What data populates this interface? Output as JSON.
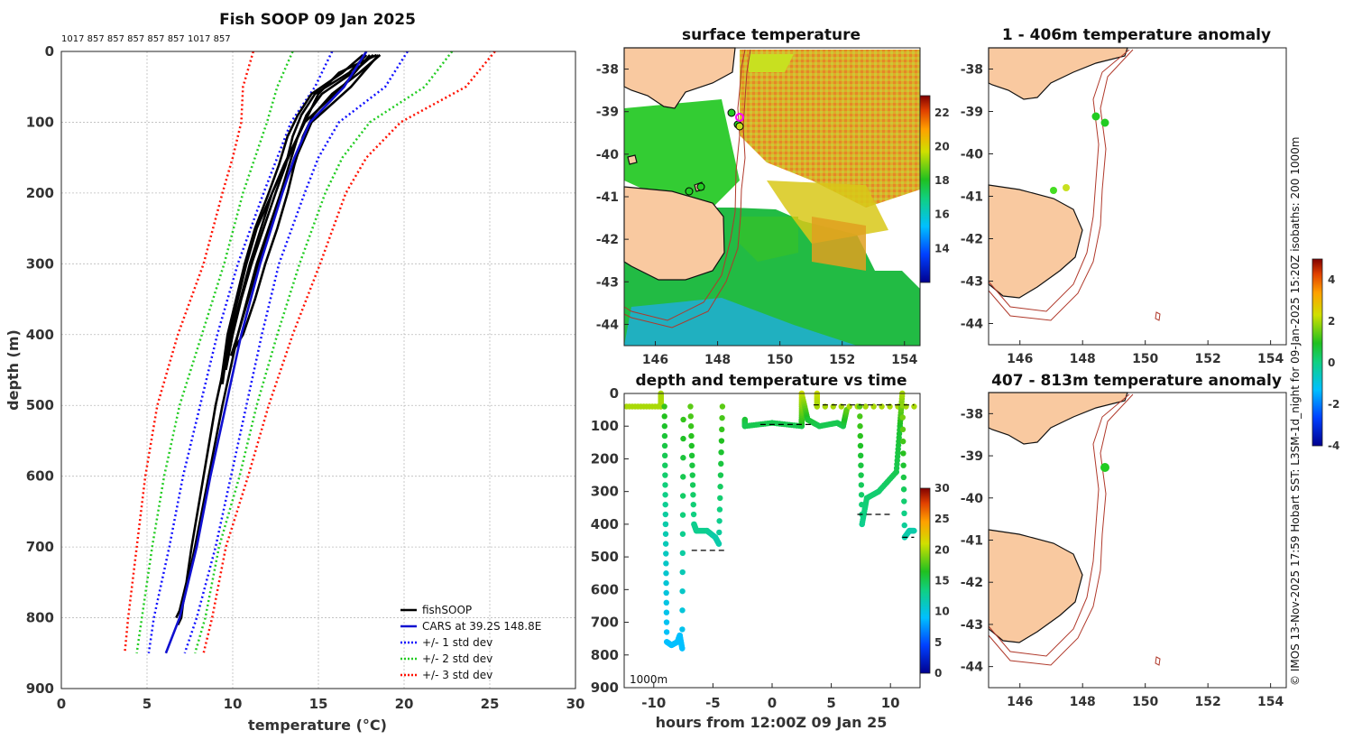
{
  "colors": {
    "fishsoop": "#000000",
    "cars": "#1010d0",
    "sd1": "#1010ff",
    "sd2": "#22cc22",
    "sd3": "#ff1100",
    "land": "#f9c9a0",
    "isobath": "#b0392b"
  },
  "depth_label_counts": "1017 857 857 857 857 857 1017 857",
  "credit": "© IMOS 13-Nov-2025 17:59 Hobart SST: L3SM-1d_night for 09-Jan-2025 15:20Z isobaths: 200  1000m",
  "chart_data": [
    {
      "id": "profile",
      "type": "line",
      "title": "Fish SOOP 09 Jan 2025",
      "xlabel": "temperature (°C)",
      "ylabel": "depth (m)",
      "xlim": [
        0,
        30
      ],
      "ylim": [
        900,
        0
      ],
      "xticks": [
        "0",
        "5",
        "10",
        "15",
        "20",
        "25",
        "30"
      ],
      "yticks": [
        "0",
        "100",
        "200",
        "300",
        "400",
        "500",
        "600",
        "700",
        "800",
        "900"
      ],
      "legend": [
        "fishSOOP",
        "CARS at 39.2S 148.8E",
        "+/- 1 std dev",
        "+/- 2 std dev",
        "+/- 3 std dev"
      ],
      "cars": {
        "depth": [
          0,
          50,
          100,
          150,
          200,
          300,
          400,
          500,
          600,
          700,
          800,
          850
        ],
        "temp": [
          17.8,
          16.5,
          14.5,
          13.6,
          12.9,
          11.6,
          10.5,
          9.6,
          8.7,
          7.9,
          6.9,
          6.1
        ]
      },
      "std_devs": [
        {
          "name": "+/- 1 std dev",
          "lower": {
            "depth": [
              0,
              50,
              100,
              150,
              200,
              300,
              400,
              500,
              600,
              700,
              800,
              850
            ],
            "temp": [
              15.8,
              14.8,
              13.4,
              12.6,
              11.8,
              10.3,
              9.1,
              8.1,
              7.1,
              6.3,
              5.4,
              5.1
            ]
          },
          "upper": {
            "depth": [
              0,
              50,
              100,
              150,
              200,
              300,
              400,
              500,
              600,
              700,
              800,
              850
            ],
            "temp": [
              20.2,
              18.9,
              16.2,
              15.0,
              14.2,
              12.7,
              11.7,
              10.8,
              9.9,
              9.0,
              7.9,
              7.2
            ]
          }
        },
        {
          "name": "+/- 2 std dev",
          "lower": {
            "depth": [
              0,
              50,
              100,
              150,
              200,
              300,
              400,
              500,
              600,
              700,
              800,
              850
            ],
            "temp": [
              13.5,
              12.6,
              12.0,
              11.3,
              10.6,
              9.5,
              8.2,
              6.9,
              6.0,
              5.3,
              4.7,
              4.4
            ]
          },
          "upper": {
            "depth": [
              0,
              50,
              100,
              150,
              200,
              300,
              400,
              500,
              600,
              700,
              800,
              850
            ],
            "temp": [
              22.8,
              21.2,
              18.0,
              16.4,
              15.4,
              13.9,
              12.6,
              11.4,
              10.4,
              9.2,
              8.4,
              7.8
            ]
          }
        },
        {
          "name": "+/- 3 std dev",
          "lower": {
            "depth": [
              0,
              50,
              100,
              150,
              200,
              300,
              400,
              500,
              600,
              700,
              800,
              850
            ],
            "temp": [
              11.2,
              10.6,
              10.5,
              10.0,
              9.4,
              8.3,
              6.8,
              5.6,
              4.9,
              4.4,
              3.9,
              3.7
            ]
          },
          "upper": {
            "depth": [
              0,
              50,
              100,
              150,
              200,
              300,
              400,
              500,
              600,
              700,
              800,
              850
            ],
            "temp": [
              25.3,
              23.6,
              19.8,
              17.8,
              16.6,
              15.1,
              13.5,
              12.1,
              10.9,
              9.6,
              8.8,
              8.3
            ]
          }
        }
      ],
      "fishsoop": [
        {
          "depth": [
            5,
            30,
            60,
            90,
            120,
            160,
            200,
            250,
            300,
            350,
            400,
            420
          ],
          "temp": [
            18.6,
            17.4,
            15.8,
            14.7,
            14.1,
            13.6,
            13.2,
            12.6,
            11.9,
            11.3,
            10.6,
            10.1
          ]
        },
        {
          "depth": [
            5,
            30,
            60,
            90,
            120,
            160,
            200,
            250,
            300,
            350,
            400,
            430
          ],
          "temp": [
            18.2,
            17.0,
            15.2,
            14.3,
            13.8,
            13.3,
            12.8,
            12.2,
            11.5,
            10.9,
            10.3,
            9.9
          ]
        },
        {
          "depth": [
            5,
            30,
            60,
            90,
            120,
            160,
            200,
            250,
            300,
            350,
            400,
            450
          ],
          "temp": [
            17.8,
            16.8,
            14.8,
            14.0,
            13.5,
            13.1,
            12.5,
            11.8,
            11.1,
            10.5,
            10.0,
            9.6
          ]
        },
        {
          "depth": [
            5,
            30,
            60,
            90,
            120,
            160,
            200,
            250,
            300,
            350,
            400,
            470
          ],
          "temp": [
            18.4,
            16.2,
            15.0,
            14.4,
            13.8,
            13.0,
            12.3,
            11.4,
            10.8,
            10.3,
            9.8,
            9.4
          ]
        },
        {
          "depth": [
            5,
            30,
            60,
            90,
            120,
            160,
            200,
            250,
            300,
            350,
            400,
            470
          ],
          "temp": [
            17.6,
            16.4,
            14.6,
            13.8,
            13.2,
            12.7,
            12.1,
            11.3,
            10.7,
            10.2,
            9.7,
            9.3
          ]
        },
        {
          "depth": [
            5,
            50,
            100,
            200,
            300,
            400,
            500,
            600,
            700,
            780,
            800,
            810
          ],
          "temp": [
            18.5,
            16.9,
            14.6,
            12.8,
            11.4,
            10.3,
            9.4,
            8.6,
            7.8,
            7.1,
            7.0,
            6.8
          ]
        },
        {
          "depth": [
            5,
            50,
            100,
            200,
            300,
            400,
            500,
            600,
            700,
            750,
            790,
            800
          ],
          "temp": [
            18.0,
            16.4,
            14.2,
            12.3,
            11.0,
            9.9,
            9.0,
            8.3,
            7.6,
            7.3,
            6.9,
            6.7
          ]
        }
      ]
    },
    {
      "id": "time",
      "type": "scatter",
      "title": "depth and temperature vs time",
      "xlabel": "hours from 12:00Z 09 Jan 25",
      "xlim": [
        -12.5,
        12.5
      ],
      "ylim": [
        900,
        0
      ],
      "xticks": [
        "-10",
        "-5",
        "0",
        "5",
        "10"
      ],
      "yticks": [
        "0",
        "100",
        "200",
        "300",
        "400",
        "500",
        "600",
        "700",
        "800",
        "900"
      ],
      "colorbar_ticks": [
        "0",
        "5",
        "10",
        "15",
        "20",
        "25",
        "30"
      ],
      "annotation": "1000m",
      "segments": [
        {
          "t": [
            -12.3,
            -9.4,
            -9.4,
            -9.4
          ],
          "d": [
            40,
            40,
            0,
            40
          ],
          "temp": [
            20,
            20,
            20,
            20
          ]
        },
        {
          "t": [
            -9.1,
            -9.0,
            -8.9,
            -8.5,
            -8.0,
            -7.8,
            -7.6,
            -7.5
          ],
          "d": [
            40,
            400,
            760,
            770,
            760,
            740,
            780,
            80
          ],
          "temp": [
            17,
            12,
            9,
            9,
            9,
            9,
            9,
            17
          ]
        },
        {
          "t": [
            -6.9,
            -6.6,
            -6.4,
            -5.5,
            -4.8,
            -4.5,
            -4.2
          ],
          "d": [
            40,
            400,
            420,
            420,
            440,
            460,
            40
          ],
          "temp": [
            18,
            13,
            13,
            13,
            12,
            12,
            18
          ]
        },
        {
          "t": [
            -2.3,
            -2.3,
            0.0,
            2.5,
            2.5,
            2.5,
            3.0,
            4.0,
            5.5,
            6.0,
            6.3
          ],
          "d": [
            80,
            100,
            90,
            100,
            80,
            0,
            80,
            100,
            90,
            100,
            50
          ],
          "temp": [
            16,
            15,
            15,
            15,
            17,
            21,
            16,
            15,
            15,
            15,
            18
          ]
        },
        {
          "t": [
            3.8,
            3.8,
            12.0
          ],
          "d": [
            0,
            40,
            40
          ],
          "temp": [
            21,
            20,
            20
          ]
        },
        {
          "t": [
            7.4,
            7.6,
            8.0,
            9.0,
            10.5,
            10.8,
            11.0,
            11.2,
            11.6,
            12.0
          ],
          "d": [
            40,
            400,
            320,
            300,
            240,
            100,
            0,
            440,
            420,
            420
          ],
          "temp": [
            18,
            13,
            14,
            14,
            15,
            16,
            20,
            12,
            12,
            12
          ]
        }
      ],
      "bottom_marks": [
        {
          "t": [
            -6.8,
            -3.8
          ],
          "d": 480
        },
        {
          "t": [
            -1.0,
            3.5
          ],
          "d": 95
        },
        {
          "t": [
            7.2,
            10.2
          ],
          "d": 370
        },
        {
          "t": [
            3.5,
            12.0
          ],
          "d": 35
        },
        {
          "t": [
            11.0,
            12.0
          ],
          "d": 440
        }
      ]
    }
  ],
  "maps": {
    "xlim": [
      145,
      154.5
    ],
    "ylim": [
      -44.5,
      -37.5
    ],
    "xticks": [
      "146",
      "148",
      "150",
      "152",
      "154"
    ],
    "yticks": [
      "-38",
      "-39",
      "-40",
      "-41",
      "-42",
      "-43",
      "-44"
    ],
    "sst": {
      "title": "surface temperature",
      "colorbar_ticks": [
        "14",
        "16",
        "18",
        "20",
        "22"
      ],
      "clim": [
        12,
        23
      ]
    },
    "anom_shallow": {
      "title": "1 - 406m temperature anomaly"
    },
    "anom_deep": {
      "title": "407 - 813m temperature anomaly"
    },
    "anom_colorbar_ticks": [
      "4",
      "2",
      "0",
      "-2",
      "-4"
    ],
    "anom_clim": [
      -4,
      5
    ]
  }
}
